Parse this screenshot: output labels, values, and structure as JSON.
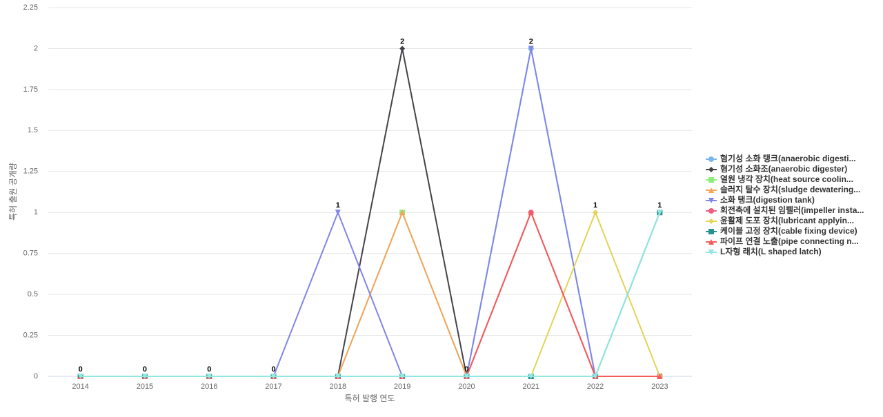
{
  "chart_data": {
    "type": "line",
    "x_label": "특허 발행 연도",
    "y_label": "특허 출원 공개량",
    "categories": [
      "2014",
      "2015",
      "2016",
      "2017",
      "2018",
      "2019",
      "2020",
      "2021",
      "2022",
      "2023"
    ],
    "ylim": [
      0,
      2.25
    ],
    "yticks": [
      0,
      0.25,
      0.5,
      0.75,
      1,
      1.25,
      1.5,
      1.75,
      2,
      2.25
    ],
    "grid": true,
    "series": [
      {
        "name": "혐기성 소화 탱크(anaerobic digesti...",
        "color": "#7cb5ec",
        "marker": "circle",
        "values": [
          0,
          0,
          0,
          0,
          0,
          0,
          0,
          2,
          0,
          0
        ]
      },
      {
        "name": "혐기성 소화조(anaerobic digester)",
        "color": "#434348",
        "marker": "diamond",
        "values": [
          0,
          0,
          0,
          0,
          0,
          2,
          0,
          0,
          0,
          0
        ]
      },
      {
        "name": "열원 냉각 장치(heat source coolin...",
        "color": "#90ed7d",
        "marker": "square",
        "values": [
          0,
          0,
          0,
          0,
          0,
          1,
          0,
          0,
          0,
          0
        ]
      },
      {
        "name": "슬러지 탈수 장치(sludge dewatering...",
        "color": "#f7a35c",
        "marker": "triangle",
        "values": [
          0,
          0,
          0,
          0,
          0,
          1,
          0,
          0,
          0,
          0
        ]
      },
      {
        "name": "소화 탱크(digestion tank)",
        "color": "#8085e9",
        "marker": "triangle-down",
        "values": [
          0,
          0,
          0,
          0,
          1,
          0,
          0,
          2,
          0,
          0
        ]
      },
      {
        "name": "회전축에 설치된 임펠러(impeller insta...",
        "color": "#f15c80",
        "marker": "circle",
        "values": [
          0,
          0,
          0,
          0,
          0,
          0,
          0,
          1,
          0,
          0
        ]
      },
      {
        "name": "윤활제 도포 장치(lubricant applyin...",
        "color": "#e4d354",
        "marker": "diamond",
        "values": [
          0,
          0,
          0,
          0,
          0,
          0,
          0,
          0,
          1,
          0
        ]
      },
      {
        "name": "케이블 고정 장치(cable fixing device)",
        "color": "#2b908f",
        "marker": "square",
        "values": [
          0,
          0,
          0,
          0,
          0,
          0,
          0,
          0,
          0,
          1
        ]
      },
      {
        "name": "파이프 연결 노출(pipe connecting n...",
        "color": "#f45b5b",
        "marker": "triangle",
        "values": [
          0,
          0,
          0,
          0,
          0,
          0,
          0,
          1,
          0,
          0
        ]
      },
      {
        "name": "L자형 래치(L shaped latch)",
        "color": "#91e8e1",
        "marker": "triangle-down",
        "values": [
          0,
          0,
          0,
          0,
          0,
          0,
          0,
          0,
          0,
          1
        ]
      }
    ]
  }
}
